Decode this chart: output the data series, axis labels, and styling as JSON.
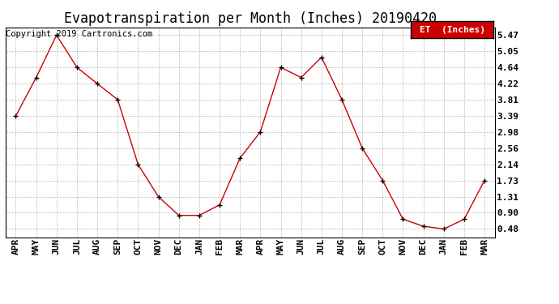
{
  "title": "Evapotranspiration per Month (Inches) 20190420",
  "copyright_text": "Copyright 2019 Cartronics.com",
  "legend_label": "ET  (Inches)",
  "months": [
    "APR",
    "MAY",
    "JUN",
    "JUL",
    "AUG",
    "SEP",
    "OCT",
    "NOV",
    "DEC",
    "JAN",
    "FEB",
    "MAR",
    "APR",
    "MAY",
    "JUN",
    "JUL",
    "AUG",
    "SEP",
    "OCT",
    "NOV",
    "DEC",
    "JAN",
    "FEB",
    "MAR"
  ],
  "values": [
    3.39,
    4.38,
    5.47,
    4.64,
    4.22,
    3.81,
    2.14,
    1.31,
    0.83,
    0.83,
    1.1,
    2.3,
    2.98,
    4.64,
    4.38,
    4.9,
    3.81,
    2.56,
    1.73,
    0.73,
    0.55,
    0.48,
    0.73,
    1.73
  ],
  "yticks": [
    0.48,
    0.9,
    1.31,
    1.73,
    2.14,
    2.56,
    2.98,
    3.39,
    3.81,
    4.22,
    4.64,
    5.05,
    5.47
  ],
  "ymin": 0.27,
  "ymax": 5.67,
  "line_color": "#cc0000",
  "marker": "+",
  "marker_color": "#000000",
  "bg_color": "#ffffff",
  "grid_color": "#aaaaaa",
  "legend_bg": "#cc0000",
  "legend_text_color": "#ffffff",
  "title_fontsize": 12,
  "tick_fontsize": 8,
  "copyright_fontsize": 7.5
}
